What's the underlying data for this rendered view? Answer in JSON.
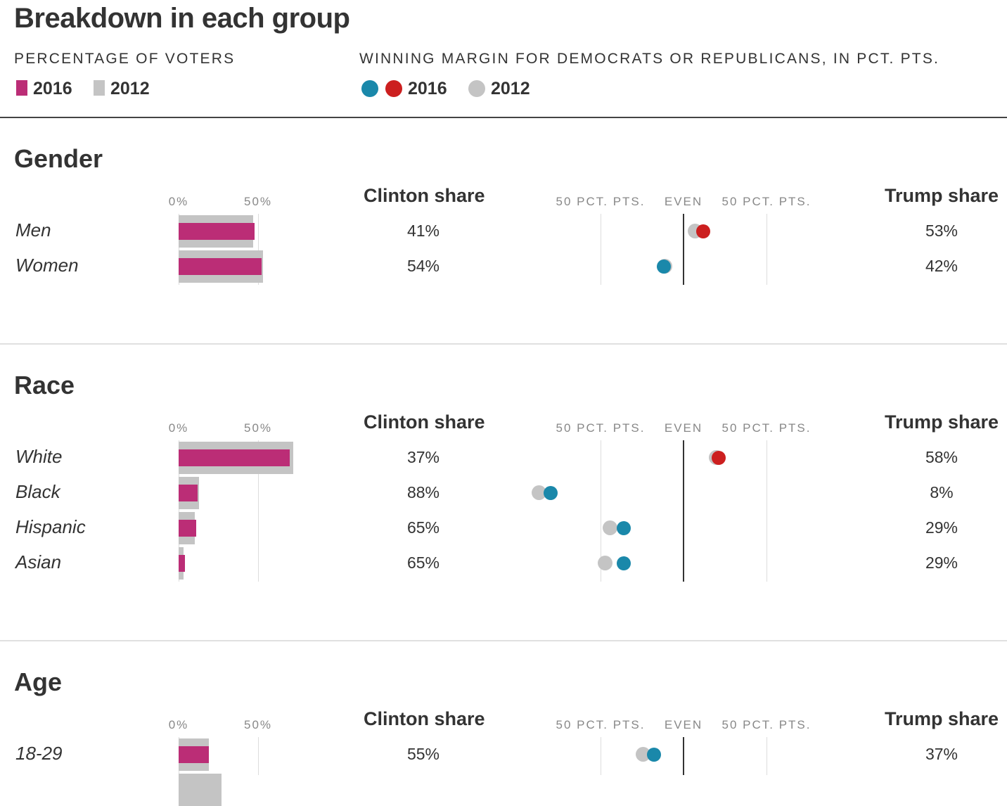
{
  "title": "Breakdown in each group",
  "legend": {
    "voters_caption": "PERCENTAGE OF VOTERS",
    "margin_caption": "WINNING MARGIN FOR DEMOCRATS OR REPUBLICANS, IN PCT. PTS.",
    "y2016": "2016",
    "y2012": "2012"
  },
  "axis_labels": {
    "bar_zero": "0%",
    "bar_fifty": "50%",
    "margin_left": "50 PCT. PTS.",
    "margin_even": "EVEN",
    "margin_right": "50 PCT. PTS.",
    "clinton_header": "Clinton share",
    "trump_header": "Trump share"
  },
  "colors": {
    "bar_2016": "#bb2d76",
    "bar_2012": "#c4c4c4",
    "dem_2016": "#1a88aa",
    "rep_2016": "#cc1f1f",
    "dot_2012": "#c4c4c4"
  },
  "chart_data": {
    "type": "bar",
    "bar_range": [
      0,
      100
    ],
    "margin_range": [
      -50,
      50
    ],
    "groups": [
      {
        "name": "Gender",
        "rows": [
          {
            "label": "Men",
            "share_2016": 48,
            "share_2012": 47,
            "margin_2016": 12,
            "margin_2012": 7,
            "clinton": "41%",
            "trump": "53%"
          },
          {
            "label": "Women",
            "share_2016": 52,
            "share_2012": 53,
            "margin_2016": -12,
            "margin_2012": -11,
            "clinton": "54%",
            "trump": "42%"
          }
        ]
      },
      {
        "name": "Race",
        "rows": [
          {
            "label": "White",
            "share_2016": 70,
            "share_2012": 72,
            "margin_2016": 21,
            "margin_2012": 20,
            "clinton": "37%",
            "trump": "58%"
          },
          {
            "label": "Black",
            "share_2016": 12,
            "share_2012": 13,
            "margin_2016": -80,
            "margin_2012": -87,
            "clinton": "88%",
            "trump": "8%"
          },
          {
            "label": "Hispanic",
            "share_2016": 11,
            "share_2012": 10,
            "margin_2016": -36,
            "margin_2012": -44,
            "clinton": "65%",
            "trump": "29%"
          },
          {
            "label": "Asian",
            "share_2016": 4,
            "share_2012": 3,
            "margin_2016": -36,
            "margin_2012": -47,
            "clinton": "65%",
            "trump": "29%"
          }
        ]
      },
      {
        "name": "Age",
        "rows": [
          {
            "label": "18-29",
            "share_2016": 19,
            "share_2012": 19,
            "margin_2016": -18,
            "margin_2012": -24,
            "clinton": "55%",
            "trump": "37%"
          },
          {
            "label": "",
            "share_2016": 0,
            "share_2012": 27,
            "margin_2016": null,
            "margin_2012": null,
            "clinton": "",
            "trump": ""
          }
        ]
      }
    ]
  }
}
